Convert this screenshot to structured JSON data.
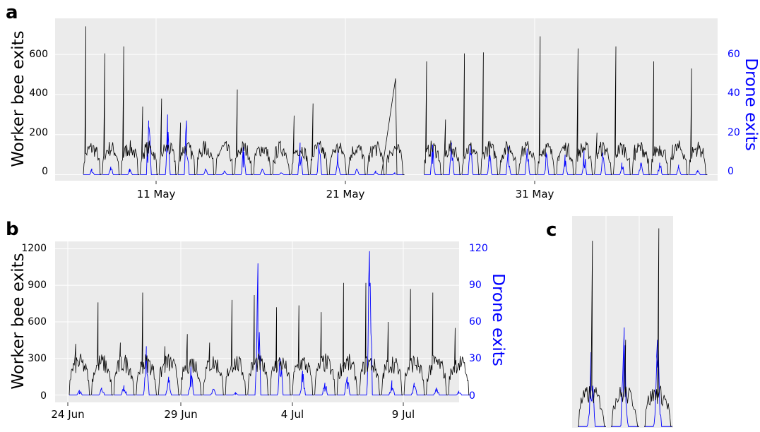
{
  "figure": {
    "panel_labels": [
      "a",
      "b",
      "c"
    ],
    "colors": {
      "worker": "#000000",
      "drone": "#0000ff",
      "plot_bg": "#ebebeb",
      "grid": "#ffffff"
    }
  },
  "chart_data": [
    {
      "type": "line",
      "panel": "a",
      "ylabel": "Worker bee exits",
      "y2label": "Drone exits",
      "ylim": [
        -30,
        780
      ],
      "y2lim": [
        -3,
        78
      ],
      "yticks": [
        "0",
        "200",
        "400",
        "600"
      ],
      "y2ticks": [
        "0",
        "20",
        "40",
        "60"
      ],
      "xlim_day": [
        4.0,
        13.8
      ],
      "xticks": [
        "11 May",
        "21 May",
        "31 May"
      ],
      "grid": true,
      "legend": "none",
      "days": [
        {
          "date": "6 May",
          "max": 740,
          "drone_max": 3
        },
        {
          "date": "7 May",
          "max": 605,
          "drone_max": 4
        },
        {
          "date": "8 May",
          "max": 640,
          "drone_max": 3
        },
        {
          "date": "9 May",
          "max": 340,
          "drone_max": 27
        },
        {
          "date": "10 May",
          "max": 380,
          "drone_max": 30
        },
        {
          "date": "11 May",
          "max": 260,
          "drone_max": 27
        },
        {
          "date": "12 May",
          "max": 130,
          "drone_max": 3
        },
        {
          "date": "13 May",
          "max": 105,
          "drone_max": 2
        },
        {
          "date": "14 May",
          "max": 425,
          "drone_max": 14
        },
        {
          "date": "15 May",
          "max": 95,
          "drone_max": 3
        },
        {
          "date": "16 May",
          "max": 55,
          "drone_max": 1
        },
        {
          "date": "17 May",
          "max": 295,
          "drone_max": 16
        },
        {
          "date": "18 May",
          "max": 355,
          "drone_max": 16
        },
        {
          "date": "19 May",
          "max": 100,
          "drone_max": 12
        },
        {
          "date": "20 May",
          "max": 70,
          "drone_max": 3
        },
        {
          "date": "21 May",
          "max": 65,
          "drone_max": 2
        },
        {
          "date": "22 May",
          "max": 60,
          "drone_max": 1
        },
        {
          "date": "24 May",
          "max": 565,
          "drone_max": 15
        },
        {
          "date": "25 May",
          "max": 275,
          "drone_max": 16
        },
        {
          "date": "26 May",
          "max": 605,
          "drone_max": 15
        },
        {
          "date": "27 May",
          "max": 610,
          "drone_max": 12
        },
        {
          "date": "28 May",
          "max": 100,
          "drone_max": 14
        },
        {
          "date": "29 May",
          "max": 100,
          "drone_max": 13
        },
        {
          "date": "30 May",
          "max": 690,
          "drone_max": 11
        },
        {
          "date": "31 May",
          "max": 95,
          "drone_max": 10
        },
        {
          "date": "1 Jun",
          "max": 630,
          "drone_max": 12
        },
        {
          "date": "2 Jun",
          "max": 210,
          "drone_max": 11
        },
        {
          "date": "3 Jun",
          "max": 640,
          "drone_max": 6
        },
        {
          "date": "4 Jun",
          "max": 150,
          "drone_max": 6
        },
        {
          "date": "5 Jun",
          "max": 565,
          "drone_max": 6
        },
        {
          "date": "6 Jun",
          "max": 150,
          "drone_max": 5
        },
        {
          "date": "7 Jun",
          "max": 530,
          "drone_max": 2
        }
      ]
    },
    {
      "type": "line",
      "panel": "b",
      "ylabel": "Worker bee exits",
      "y2label": "Drone exits",
      "ylim": [
        -60,
        1260
      ],
      "y2lim": [
        -6,
        126
      ],
      "yticks": [
        "0",
        "300",
        "600",
        "900",
        "1200"
      ],
      "y2ticks": [
        "0",
        "30",
        "60",
        "90",
        "120"
      ],
      "xticks": [
        "24 Jun",
        "29 Jun",
        "4 Jul",
        "9 Jul"
      ],
      "grid": true,
      "legend": "none",
      "days": [
        {
          "date": "24 Jun",
          "max": 420,
          "drone_max": 4
        },
        {
          "date": "25 Jun",
          "max": 760,
          "drone_max": 6
        },
        {
          "date": "26 Jun",
          "max": 430,
          "drone_max": 8
        },
        {
          "date": "27 Jun",
          "max": 840,
          "drone_max": 40
        },
        {
          "date": "28 Jun",
          "max": 400,
          "drone_max": 15
        },
        {
          "date": "29 Jun",
          "max": 500,
          "drone_max": 25
        },
        {
          "date": "30 Jun",
          "max": 430,
          "drone_max": 5
        },
        {
          "date": "1 Jul",
          "max": 780,
          "drone_max": 2
        },
        {
          "date": "2 Jul",
          "max": 820,
          "drone_max": 108
        },
        {
          "date": "3 Jul",
          "max": 720,
          "drone_max": 30
        },
        {
          "date": "4 Jul",
          "max": 735,
          "drone_max": 20
        },
        {
          "date": "5 Jul",
          "max": 680,
          "drone_max": 10
        },
        {
          "date": "6 Jul",
          "max": 920,
          "drone_max": 15
        },
        {
          "date": "7 Jul",
          "max": 920,
          "drone_max": 118
        },
        {
          "date": "8 Jul",
          "max": 600,
          "drone_max": 12
        },
        {
          "date": "9 Jul",
          "max": 870,
          "drone_max": 10
        },
        {
          "date": "10 Jul",
          "max": 840,
          "drone_max": 6
        },
        {
          "date": "11 Jul",
          "max": 550,
          "drone_max": 3
        }
      ]
    },
    {
      "type": "line",
      "panel": "c",
      "grid": true,
      "legend": "none",
      "days": [
        {
          "day": 1,
          "max": 1500,
          "drone_max": 60
        },
        {
          "day": 2,
          "max": 700,
          "drone_max": 80
        },
        {
          "day": 3,
          "max": 1600,
          "drone_max": 70
        }
      ]
    }
  ]
}
